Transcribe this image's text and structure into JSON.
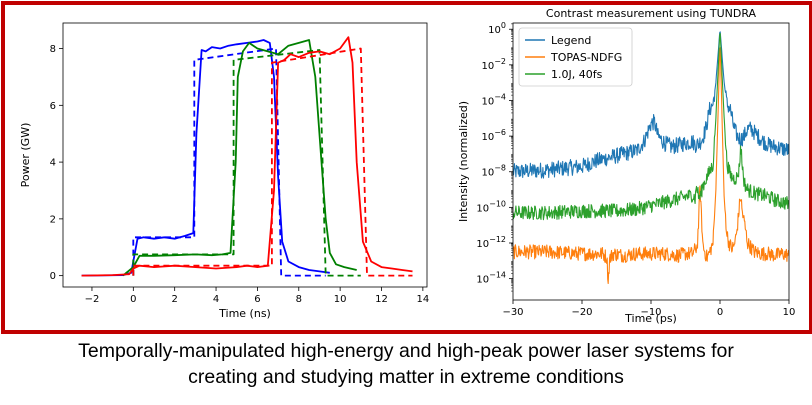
{
  "caption": {
    "line1": "Temporally-manipulated high-energy and high-peak power laser systems for",
    "line2": "creating and studying matter in extreme conditions"
  },
  "colors": {
    "frame": "#c00000",
    "blue": "#1f77b4",
    "orange": "#ff7f0e",
    "green": "#2ca02c",
    "red": "#d62728",
    "pure_blue": "#0000ff",
    "pure_green": "#008000",
    "pure_red": "#ff0000"
  },
  "chart_data": [
    {
      "type": "line",
      "title": "",
      "xlabel": "Time (ns)",
      "ylabel": "Power (GW)",
      "xlim": [
        -3.4,
        14.2
      ],
      "ylim": [
        -0.4,
        8.9
      ],
      "xticks": [
        -2,
        0,
        2,
        4,
        6,
        8,
        10,
        12,
        14
      ],
      "yticks": [
        0,
        2,
        4,
        6,
        8
      ],
      "series": [
        {
          "name": "blue measured",
          "color": "#0000ff",
          "dash": false,
          "x": [
            -2.5,
            -0.5,
            -0.1,
            0.0,
            0.2,
            0.5,
            1.0,
            1.5,
            2.0,
            2.5,
            2.9,
            3.05,
            3.3,
            3.5,
            3.8,
            4.2,
            4.6,
            5.0,
            5.5,
            6.0,
            6.3,
            6.6,
            6.8,
            7.0,
            7.2,
            7.5,
            8.0,
            8.5,
            9.0,
            9.5
          ],
          "y": [
            0.0,
            0.02,
            0.1,
            0.5,
            1.3,
            1.35,
            1.3,
            1.35,
            1.3,
            1.4,
            1.5,
            5.0,
            7.95,
            7.9,
            8.05,
            8.0,
            8.1,
            8.15,
            8.2,
            8.25,
            8.3,
            8.2,
            7.0,
            3.5,
            1.2,
            0.5,
            0.3,
            0.2,
            0.15,
            0.1
          ]
        },
        {
          "name": "blue model",
          "color": "#0000ff",
          "dash": true,
          "x": [
            0.0,
            0.0,
            2.95,
            2.95,
            6.9,
            7.15,
            9.3
          ],
          "y": [
            0.0,
            1.35,
            1.35,
            7.6,
            8.0,
            0.0,
            0.0
          ]
        },
        {
          "name": "green measured",
          "color": "#008000",
          "dash": false,
          "x": [
            -0.5,
            0.0,
            0.3,
            1.0,
            2.0,
            3.0,
            3.8,
            4.3,
            4.7,
            4.95,
            5.05,
            5.3,
            5.6,
            6.0,
            6.5,
            7.0,
            7.5,
            8.0,
            8.5,
            8.8,
            9.1,
            9.3,
            9.5,
            9.8,
            10.2,
            10.8
          ],
          "y": [
            0.0,
            0.3,
            0.7,
            0.7,
            0.72,
            0.75,
            0.72,
            0.75,
            0.8,
            4.0,
            7.0,
            7.9,
            8.2,
            8.0,
            7.9,
            7.8,
            8.1,
            8.2,
            8.3,
            7.0,
            4.0,
            2.0,
            0.8,
            0.4,
            0.3,
            0.2
          ]
        },
        {
          "name": "green model",
          "color": "#008000",
          "dash": true,
          "x": [
            0.0,
            0.0,
            4.85,
            4.85,
            9.0,
            9.3,
            11.0
          ],
          "y": [
            0.0,
            0.75,
            0.75,
            7.6,
            7.95,
            0.0,
            0.0
          ]
        },
        {
          "name": "red measured",
          "color": "#ff0000",
          "dash": false,
          "x": [
            -2.5,
            -1.0,
            -0.2,
            0.0,
            0.3,
            1.0,
            2.0,
            3.0,
            4.0,
            5.0,
            5.5,
            6.0,
            6.5,
            6.8,
            7.0,
            7.3,
            7.6,
            8.0,
            8.5,
            9.0,
            9.5,
            10.0,
            10.4,
            10.6,
            10.8,
            11.1,
            11.5,
            12.0,
            12.5,
            13.0,
            13.5
          ],
          "y": [
            0.0,
            0.02,
            0.05,
            0.25,
            0.35,
            0.3,
            0.35,
            0.3,
            0.25,
            0.3,
            0.35,
            0.3,
            0.35,
            3.0,
            7.5,
            7.6,
            7.8,
            7.7,
            7.85,
            7.9,
            7.8,
            8.0,
            8.4,
            7.5,
            4.0,
            1.2,
            0.5,
            0.3,
            0.25,
            0.2,
            0.15
          ]
        },
        {
          "name": "red model",
          "color": "#ff0000",
          "dash": true,
          "x": [
            0.0,
            0.0,
            6.7,
            6.7,
            11.0,
            11.3,
            13.5
          ],
          "y": [
            0.0,
            0.35,
            0.35,
            7.5,
            8.0,
            0.0,
            0.0
          ]
        }
      ]
    },
    {
      "type": "line",
      "title": "Contrast measurement using TUNDRA",
      "xlabel": "Time (ps)",
      "ylabel": "Intensity (normalized)",
      "yscale": "log",
      "xlim": [
        -30,
        10
      ],
      "ylim_log10": [
        -15.2,
        0.35
      ],
      "xticks": [
        -30,
        -20,
        -10,
        0,
        10
      ],
      "xtick_labels": [
        "−30",
        "−20",
        "−10",
        "0",
        "10"
      ],
      "yticks_log10": [
        0,
        -2,
        -4,
        -6,
        -8,
        -10,
        -12,
        -14
      ],
      "ytick_mantissa": "10",
      "ytick_exponents": [
        "0",
        "−2",
        "−4",
        "−6",
        "−8",
        "−10",
        "−12",
        "−14"
      ],
      "legend": [
        "Legend",
        "TOPAS-NDFG",
        "1.0J, 40fs"
      ],
      "legend_position": "top-left",
      "series": [
        {
          "name": "Legend",
          "color": "#1f77b4",
          "x": [
            -30,
            -25,
            -20,
            -18,
            -16,
            -14,
            -12,
            -11,
            -10,
            -9.5,
            -9,
            -8,
            -7,
            -6,
            -5,
            -4,
            -3.5,
            -3,
            -2.5,
            -2,
            -1.5,
            -1,
            -0.6,
            -0.3,
            0,
            0.3,
            0.6,
            1,
            1.5,
            2,
            2.5,
            3,
            3.5,
            4,
            4.5,
            5,
            5.5,
            6,
            7,
            8,
            9,
            10
          ],
          "logy": [
            -8.0,
            -7.9,
            -7.7,
            -7.4,
            -7.2,
            -7.0,
            -6.8,
            -6.3,
            -5.3,
            -5.2,
            -6.0,
            -6.4,
            -6.6,
            -6.5,
            -6.4,
            -6.3,
            -6.5,
            -6.4,
            -6.1,
            -5.5,
            -4.5,
            -4.2,
            -3.0,
            -1.5,
            0.0,
            -1.5,
            -3.0,
            -4.2,
            -4.5,
            -5.5,
            -6.0,
            -6.2,
            -6.0,
            -5.6,
            -5.6,
            -5.8,
            -6.0,
            -6.2,
            -6.5,
            -6.6,
            -6.7,
            -6.8
          ]
        },
        {
          "name": "TOPAS-NDFG",
          "color": "#ff7f0e",
          "x": [
            -30,
            -25,
            -20,
            -17,
            -16.4,
            -16.2,
            -16,
            -15.5,
            -14,
            -12,
            -10,
            -8,
            -6,
            -5,
            -4,
            -3.3,
            -3.1,
            -2.9,
            -2.7,
            -2.5,
            -2.3,
            -2.1,
            -1.9,
            -1.6,
            -1.3,
            -1.0,
            -0.6,
            -0.3,
            0,
            0.3,
            0.6,
            1.0,
            1.3,
            1.7,
            2.0,
            2.4,
            2.8,
            3.0,
            3.2,
            3.6,
            4.0,
            5,
            6,
            7,
            8,
            9,
            10
          ],
          "logy": [
            -12.5,
            -12.5,
            -12.6,
            -12.6,
            -12.8,
            -14.2,
            -12.9,
            -12.6,
            -12.7,
            -12.6,
            -12.6,
            -12.6,
            -12.7,
            -12.6,
            -12.6,
            -12.2,
            -10.8,
            -8.8,
            -10.5,
            -12.0,
            -12.4,
            -12.6,
            -12.8,
            -12.6,
            -12.3,
            -12.0,
            -9.0,
            -5.0,
            -0.6,
            -5.0,
            -9.5,
            -11.5,
            -12.0,
            -12.3,
            -12.2,
            -11.5,
            -10.0,
            -9.3,
            -10.2,
            -11.0,
            -12.0,
            -12.5,
            -12.6,
            -12.6,
            -12.7,
            -12.6,
            -12.7
          ]
        },
        {
          "name": "1.0J, 40fs",
          "color": "#2ca02c",
          "x": [
            -30,
            -25,
            -20,
            -15,
            -12,
            -10,
            -8,
            -6,
            -5,
            -4,
            -3.6,
            -3.4,
            -3.2,
            -3.0,
            -2.8,
            -2.5,
            -2.0,
            -1.5,
            -1.0,
            -0.6,
            -0.3,
            0,
            0.3,
            0.6,
            1.0,
            1.5,
            2.0,
            2.5,
            2.8,
            3.0,
            3.2,
            3.5,
            4.0,
            5,
            6,
            7,
            8,
            9,
            10
          ],
          "logy": [
            -10.3,
            -10.3,
            -10.2,
            -10.2,
            -10.1,
            -9.9,
            -9.7,
            -9.5,
            -9.4,
            -9.3,
            -9.5,
            -8.8,
            -9.2,
            -9.5,
            -9.3,
            -8.8,
            -8.4,
            -8.0,
            -7.6,
            -5.0,
            -2.5,
            0.0,
            -2.5,
            -5.0,
            -7.5,
            -8.2,
            -8.4,
            -8.3,
            -7.8,
            -6.5,
            -7.5,
            -8.6,
            -9.0,
            -9.2,
            -9.3,
            -9.4,
            -9.6,
            -9.7,
            -9.8
          ]
        }
      ]
    }
  ]
}
